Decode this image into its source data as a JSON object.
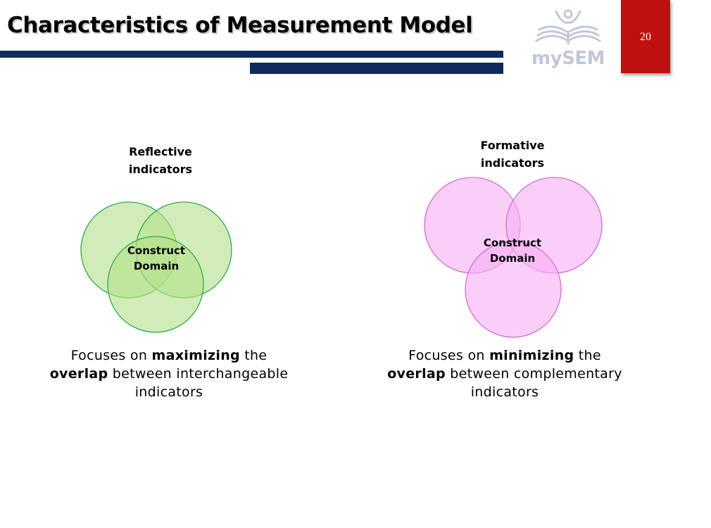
{
  "slide": {
    "title": "Characteristics of Measurement Model",
    "page_number": "20",
    "logo_text": "mySEM"
  },
  "reflective": {
    "label": "Reflective\nindicators",
    "center_label": "Construct\nDomain",
    "fill_color": "#b5e08c",
    "stroke_color": "#2ea84a",
    "caption": {
      "part1": "Focuses on ",
      "bold1": "maximizing",
      "part2": " the ",
      "bold2": "overlap",
      "part3": " between interchangeable indicators"
    }
  },
  "formative": {
    "label": "Formative\nindicators",
    "center_label": "Construct\nDomain",
    "fill_color": "#f7b0f4",
    "stroke_color": "#d86ad6",
    "caption": {
      "part1": "Focuses on ",
      "bold1": "minimizing",
      "part2": " the ",
      "bold2": "overlap",
      "part3": " between complementary indicators"
    }
  }
}
